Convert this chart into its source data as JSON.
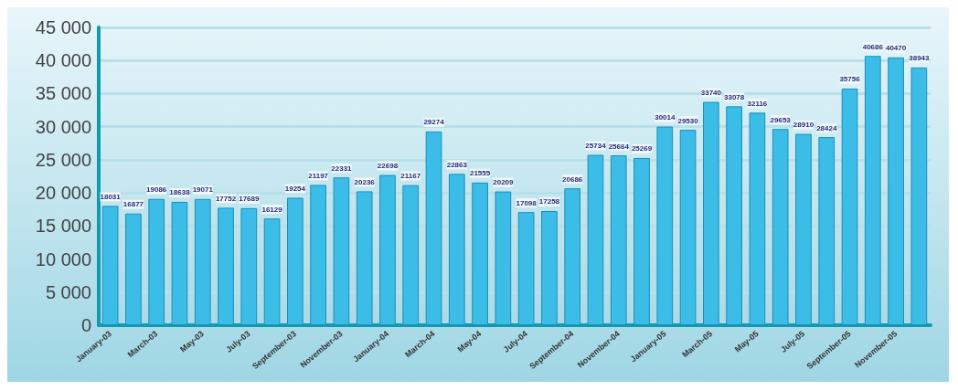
{
  "chart_data": {
    "type": "bar",
    "categories": [
      "January-03",
      null,
      "March-03",
      null,
      "May-03",
      null,
      "July-03",
      null,
      "September-03",
      null,
      "November-03",
      null,
      "January-04",
      null,
      "March-04",
      null,
      "May-04",
      null,
      "July-04",
      null,
      "September-04",
      null,
      "November-04",
      null,
      "January-05",
      null,
      "March-05",
      null,
      "May-05",
      null,
      "July-05",
      null,
      "September-05",
      null,
      "November-05",
      null
    ],
    "values": [
      18031,
      16877,
      19086,
      18638,
      19071,
      17752,
      17689,
      16129,
      19254,
      21197,
      22331,
      20236,
      22698,
      21167,
      29274,
      22863,
      21555,
      20209,
      17098,
      17258,
      20686,
      25734,
      25664,
      25269,
      30014,
      29530,
      33740,
      33078,
      32116,
      29653,
      28910,
      28424,
      35756,
      40686,
      40470,
      38943
    ],
    "color": "#3bbde8",
    "ylim": [
      0,
      45000
    ],
    "yticks": [
      {
        "value": 0,
        "label": "0"
      },
      {
        "value": 5000,
        "label": "5 000"
      },
      {
        "value": 10000,
        "label": "10 000"
      },
      {
        "value": 15000,
        "label": "15 000"
      },
      {
        "value": 20000,
        "label": "20 000"
      },
      {
        "value": 25000,
        "label": "25 000"
      },
      {
        "value": 30000,
        "label": "30 000"
      },
      {
        "value": 35000,
        "label": "35 000"
      },
      {
        "value": 40000,
        "label": "40 000"
      },
      {
        "value": 45000,
        "label": "45 000"
      }
    ],
    "grid": "y",
    "data_labels": true
  }
}
